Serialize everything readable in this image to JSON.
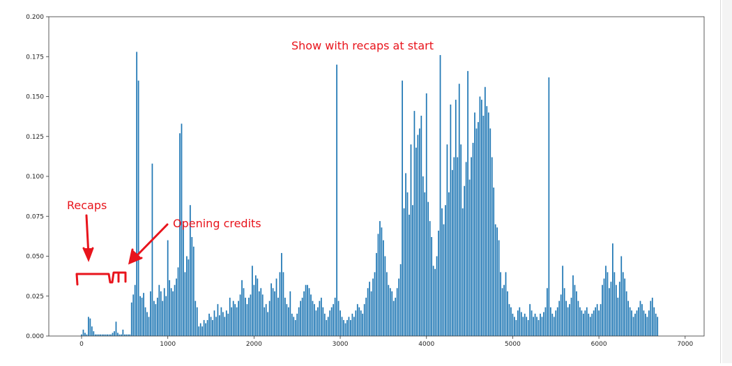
{
  "chart_data": {
    "type": "bar",
    "title": "",
    "xlabel": "",
    "ylabel": "",
    "xlim": [
      -380,
      7220
    ],
    "ylim": [
      0,
      0.2
    ],
    "grid": false,
    "bar_color": "#1f77b4",
    "x_ticks": [
      0,
      1000,
      2000,
      3000,
      4000,
      5000,
      6000,
      7000
    ],
    "x_tick_labels": [
      "0",
      "1000",
      "2000",
      "3000",
      "4000",
      "5000",
      "6000",
      "7000"
    ],
    "y_ticks": [
      0,
      0.025,
      0.05,
      0.075,
      0.1,
      0.125,
      0.15,
      0.175,
      0.2
    ],
    "y_tick_labels": [
      "0.000",
      "0.025",
      "0.050",
      "0.075",
      "0.100",
      "0.125",
      "0.150",
      "0.175",
      "0.200"
    ],
    "x_step": 20,
    "values": [
      0.001,
      0.004,
      0.002,
      0.001,
      0.012,
      0.011,
      0.006,
      0.003,
      0.001,
      0.001,
      0.001,
      0.001,
      0.001,
      0.001,
      0.001,
      0.001,
      0.001,
      0.001,
      0.002,
      0.003,
      0.009,
      0.002,
      0.001,
      0.001,
      0.004,
      0.001,
      0.001,
      0.001,
      0.001,
      0.021,
      0.026,
      0.032,
      0.178,
      0.16,
      0.025,
      0.024,
      0.027,
      0.018,
      0.015,
      0.012,
      0.028,
      0.108,
      0.022,
      0.02,
      0.024,
      0.032,
      0.028,
      0.022,
      0.03,
      0.025,
      0.06,
      0.035,
      0.03,
      0.028,
      0.032,
      0.036,
      0.043,
      0.127,
      0.133,
      0.07,
      0.04,
      0.05,
      0.048,
      0.082,
      0.062,
      0.056,
      0.022,
      0.018,
      0.006,
      0.008,
      0.006,
      0.01,
      0.008,
      0.01,
      0.014,
      0.012,
      0.01,
      0.016,
      0.012,
      0.02,
      0.013,
      0.018,
      0.015,
      0.012,
      0.016,
      0.014,
      0.024,
      0.018,
      0.022,
      0.02,
      0.018,
      0.022,
      0.026,
      0.035,
      0.03,
      0.024,
      0.02,
      0.024,
      0.026,
      0.044,
      0.032,
      0.038,
      0.036,
      0.028,
      0.03,
      0.026,
      0.018,
      0.02,
      0.015,
      0.022,
      0.033,
      0.03,
      0.028,
      0.036,
      0.024,
      0.04,
      0.052,
      0.04,
      0.024,
      0.02,
      0.018,
      0.028,
      0.014,
      0.012,
      0.01,
      0.014,
      0.018,
      0.022,
      0.024,
      0.028,
      0.032,
      0.032,
      0.03,
      0.026,
      0.022,
      0.02,
      0.016,
      0.018,
      0.022,
      0.024,
      0.018,
      0.014,
      0.01,
      0.012,
      0.016,
      0.018,
      0.02,
      0.024,
      0.17,
      0.022,
      0.016,
      0.012,
      0.01,
      0.008,
      0.01,
      0.012,
      0.01,
      0.014,
      0.012,
      0.016,
      0.02,
      0.018,
      0.016,
      0.014,
      0.02,
      0.024,
      0.03,
      0.034,
      0.028,
      0.036,
      0.04,
      0.052,
      0.064,
      0.072,
      0.068,
      0.06,
      0.05,
      0.04,
      0.032,
      0.03,
      0.028,
      0.022,
      0.024,
      0.03,
      0.036,
      0.045,
      0.16,
      0.08,
      0.102,
      0.09,
      0.076,
      0.12,
      0.082,
      0.141,
      0.118,
      0.126,
      0.13,
      0.138,
      0.1,
      0.09,
      0.152,
      0.084,
      0.072,
      0.062,
      0.044,
      0.042,
      0.05,
      0.066,
      0.176,
      0.08,
      0.07,
      0.082,
      0.12,
      0.09,
      0.145,
      0.104,
      0.112,
      0.148,
      0.112,
      0.158,
      0.12,
      0.08,
      0.094,
      0.109,
      0.166,
      0.098,
      0.112,
      0.121,
      0.14,
      0.13,
      0.134,
      0.15,
      0.148,
      0.138,
      0.156,
      0.144,
      0.14,
      0.13,
      0.112,
      0.093,
      0.07,
      0.068,
      0.06,
      0.04,
      0.03,
      0.032,
      0.04,
      0.028,
      0.02,
      0.018,
      0.014,
      0.012,
      0.01,
      0.016,
      0.018,
      0.015,
      0.012,
      0.014,
      0.012,
      0.01,
      0.02,
      0.016,
      0.012,
      0.014,
      0.012,
      0.01,
      0.014,
      0.012,
      0.015,
      0.018,
      0.03,
      0.162,
      0.018,
      0.014,
      0.012,
      0.016,
      0.018,
      0.022,
      0.026,
      0.044,
      0.03,
      0.022,
      0.018,
      0.02,
      0.024,
      0.038,
      0.032,
      0.028,
      0.022,
      0.018,
      0.016,
      0.014,
      0.016,
      0.018,
      0.014,
      0.012,
      0.014,
      0.016,
      0.018,
      0.02,
      0.016,
      0.02,
      0.032,
      0.036,
      0.044,
      0.04,
      0.03,
      0.034,
      0.058,
      0.04,
      0.032,
      0.024,
      0.034,
      0.05,
      0.04,
      0.036,
      0.028,
      0.022,
      0.018,
      0.016,
      0.012,
      0.014,
      0.016,
      0.018,
      0.022,
      0.02,
      0.016,
      0.014,
      0.012,
      0.016,
      0.022,
      0.024,
      0.018,
      0.014,
      0.012
    ]
  },
  "annotations": {
    "title_text": "Show with recaps at start",
    "recaps_label": "Recaps",
    "opening_credits_label": "Opening credits",
    "color": "#e8141c"
  }
}
